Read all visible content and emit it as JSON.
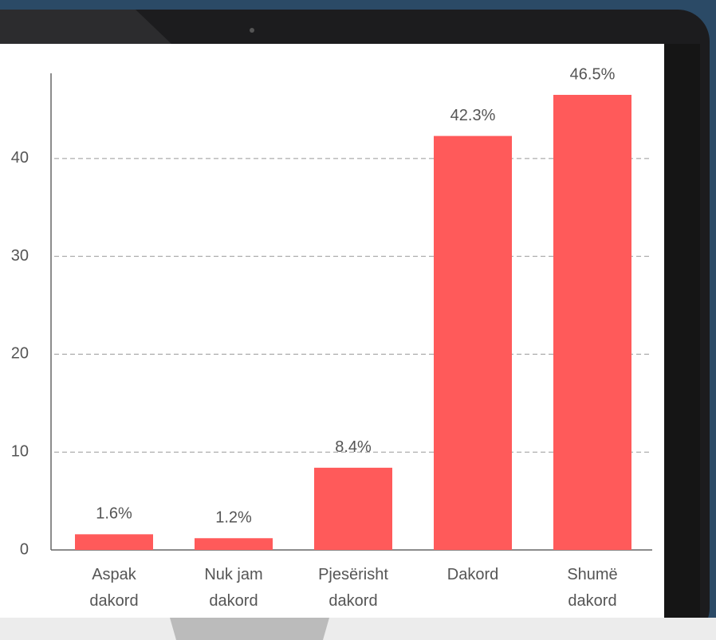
{
  "chart_data": {
    "type": "bar",
    "categories": [
      "Aspak\ndakord",
      "Nuk jam\ndakord",
      "Pjesërisht\ndakord",
      "Dakord",
      "Shumë\ndakord"
    ],
    "values": [
      1.6,
      1.2,
      8.4,
      42.3,
      46.5
    ],
    "value_labels": [
      "1.6%",
      "1.2%",
      "8.4%",
      "42.3%",
      "46.5%"
    ],
    "color": "#ff5a5a",
    "ylim": [
      0,
      48.7
    ],
    "yticks": [
      0,
      10,
      20,
      30,
      40
    ],
    "grid": true
  }
}
